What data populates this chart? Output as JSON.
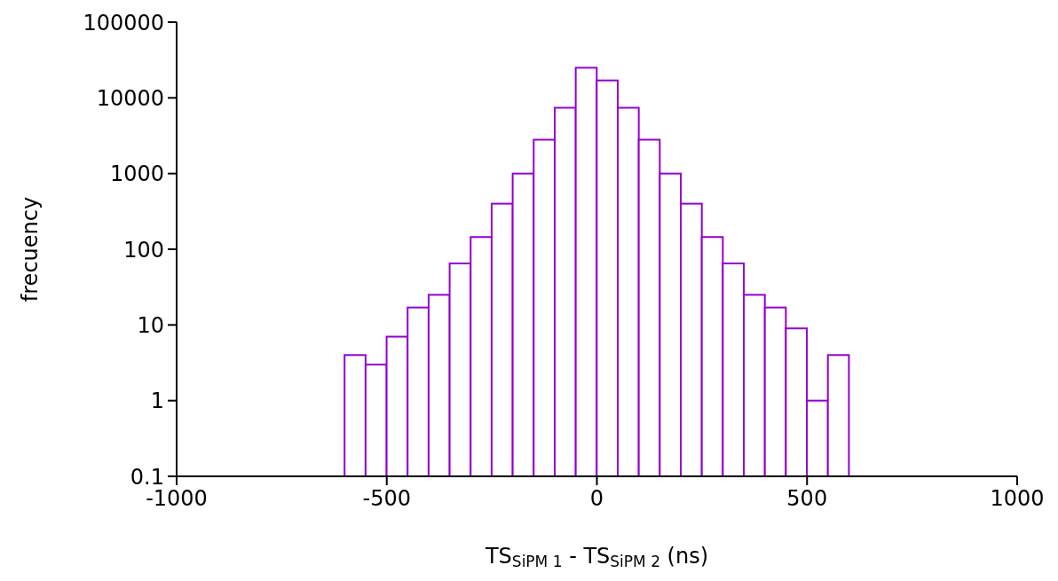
{
  "chart_data": {
    "type": "histogram",
    "xlabel": "TS$_{SiPM 1}$ - TS$_{SiPM 2}$ (ns)",
    "ylabel": "frecuency",
    "color": "#9400d3",
    "bins": [
      -600,
      -550,
      -500,
      -450,
      -400,
      -350,
      -300,
      -250,
      -200,
      -150,
      -100,
      -50,
      0,
      50,
      100,
      150,
      200,
      250,
      300,
      350,
      400,
      450,
      500,
      550,
      600
    ],
    "values": [
      4,
      3,
      7,
      17,
      25,
      65,
      145,
      400,
      1000,
      2800,
      7400,
      25000,
      17000,
      7400,
      2800,
      1000,
      400,
      145,
      65,
      25,
      17,
      9,
      1,
      4
    ],
    "xlim": [
      -1000,
      1000
    ],
    "xticks": [
      -1000,
      -500,
      0,
      500,
      1000
    ],
    "ylim": [
      0.1,
      100000
    ],
    "yticks": [
      0.1,
      1,
      10,
      100,
      1000,
      10000,
      100000
    ],
    "log": true,
    "grid": false
  }
}
